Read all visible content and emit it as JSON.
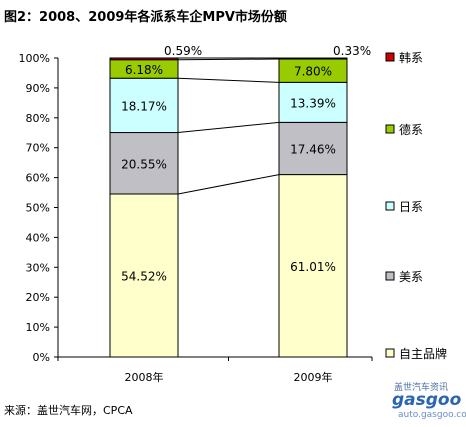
{
  "title": "图2：2008、2009年各派系车企MPV市场份额",
  "source": "来源：盖世汽车网，CPCA",
  "watermark": {
    "line1": "盖世汽车资讯",
    "brand": "gasgoo",
    "url": "auto.gasgoo.com"
  },
  "chart_data": {
    "type": "bar",
    "stacked": true,
    "categories": [
      "2008年",
      "2009年"
    ],
    "y_ticks": [
      "0%",
      "10%",
      "20%",
      "30%",
      "40%",
      "50%",
      "60%",
      "70%",
      "80%",
      "90%",
      "100%"
    ],
    "ylim": [
      0,
      100
    ],
    "legend_position": "right",
    "series": [
      {
        "name": "自主品牌",
        "values": [
          54.52,
          61.01
        ],
        "labels": [
          "54.52%",
          "61.01%"
        ],
        "color": "#ffffcc"
      },
      {
        "name": "美系",
        "values": [
          20.55,
          17.46
        ],
        "labels": [
          "20.55%",
          "17.46%"
        ],
        "color": "#c0bfc6"
      },
      {
        "name": "日系",
        "values": [
          18.17,
          13.39
        ],
        "labels": [
          "18.17%",
          "13.39%"
        ],
        "color": "#ccffff"
      },
      {
        "name": "德系",
        "values": [
          6.18,
          7.8
        ],
        "labels": [
          "6.18%",
          "7.80%"
        ],
        "color": "#99cc00"
      },
      {
        "name": "韩系",
        "values": [
          0.59,
          0.33
        ],
        "labels": [
          "0.59%",
          "0.33%"
        ],
        "color": "#cc0000"
      }
    ]
  }
}
